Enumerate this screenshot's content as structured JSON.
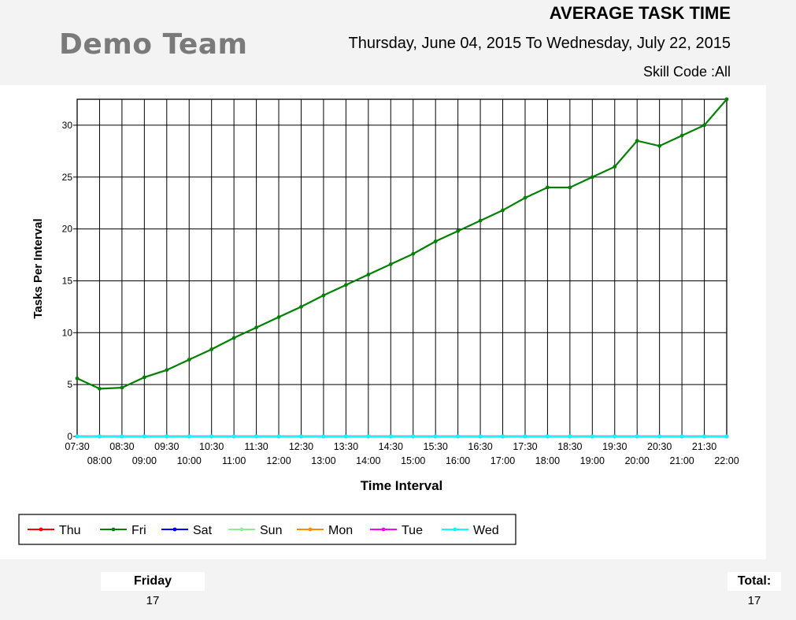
{
  "header": {
    "team_name": "Demo Team",
    "report_title": "AVERAGE TASK TIME",
    "date_range": "Thursday, June 04, 2015 To Wednesday, July 22, 2015",
    "skill_code": "Skill Code :All"
  },
  "chart_data": {
    "type": "line",
    "xlabel": "Time Interval",
    "ylabel": "Tasks Per Interval",
    "ylim": [
      0,
      32.5
    ],
    "yticks": [
      0,
      5,
      10,
      15,
      20,
      25,
      30
    ],
    "grid": true,
    "legend_position": "bottom-left",
    "categories": [
      "07:30",
      "08:00",
      "08:30",
      "09:00",
      "09:30",
      "10:00",
      "10:30",
      "11:00",
      "11:30",
      "12:00",
      "12:30",
      "13:00",
      "13:30",
      "14:00",
      "14:30",
      "15:00",
      "15:30",
      "16:00",
      "16:30",
      "17:00",
      "17:30",
      "18:00",
      "18:30",
      "19:00",
      "19:30",
      "20:00",
      "20:30",
      "21:00",
      "21:30",
      "22:00"
    ],
    "series": [
      {
        "name": "Thu",
        "color": "#ff0000",
        "values": [
          0,
          0,
          0,
          0,
          0,
          0,
          0,
          0,
          0,
          0,
          0,
          0,
          0,
          0,
          0,
          0,
          0,
          0,
          0,
          0,
          0,
          0,
          0,
          0,
          0,
          0,
          0,
          0,
          0,
          0
        ]
      },
      {
        "name": "Fri",
        "color": "#008000",
        "values": [
          5.6,
          4.6,
          4.7,
          5.7,
          6.4,
          7.4,
          8.4,
          9.5,
          10.5,
          11.5,
          12.5,
          13.6,
          14.6,
          15.6,
          16.6,
          17.6,
          18.8,
          19.8,
          20.8,
          21.8,
          23.0,
          24.0,
          24.0,
          25.0,
          26.0,
          28.5,
          28.0,
          29.0,
          30.0,
          32.5
        ]
      },
      {
        "name": "Sat",
        "color": "#0000ff",
        "values": [
          0,
          0,
          0,
          0,
          0,
          0,
          0,
          0,
          0,
          0,
          0,
          0,
          0,
          0,
          0,
          0,
          0,
          0,
          0,
          0,
          0,
          0,
          0,
          0,
          0,
          0,
          0,
          0,
          0,
          0
        ]
      },
      {
        "name": "Sun",
        "color": "#90ee90",
        "values": [
          0,
          0,
          0,
          0,
          0,
          0,
          0,
          0,
          0,
          0,
          0,
          0,
          0,
          0,
          0,
          0,
          0,
          0,
          0,
          0,
          0,
          0,
          0,
          0,
          0,
          0,
          0,
          0,
          0,
          0
        ]
      },
      {
        "name": "Mon",
        "color": "#ff8c00",
        "values": [
          0,
          0,
          0,
          0,
          0,
          0,
          0,
          0,
          0,
          0,
          0,
          0,
          0,
          0,
          0,
          0,
          0,
          0,
          0,
          0,
          0,
          0,
          0,
          0,
          0,
          0,
          0,
          0,
          0,
          0
        ]
      },
      {
        "name": "Tue",
        "color": "#ff00ff",
        "values": [
          0,
          0,
          0,
          0,
          0,
          0,
          0,
          0,
          0,
          0,
          0,
          0,
          0,
          0,
          0,
          0,
          0,
          0,
          0,
          0,
          0,
          0,
          0,
          0,
          0,
          0,
          0,
          0,
          0,
          0
        ]
      },
      {
        "name": "Wed",
        "color": "#00ffff",
        "values": [
          0,
          0,
          0,
          0,
          0,
          0,
          0,
          0,
          0,
          0,
          0,
          0,
          0,
          0,
          0,
          0,
          0,
          0,
          0,
          0,
          0,
          0,
          0,
          0,
          0,
          0,
          0,
          0,
          0,
          0
        ]
      }
    ]
  },
  "footer": {
    "day_label": "Friday",
    "day_value": "17",
    "total_label": "Total:",
    "total_value": "17"
  }
}
